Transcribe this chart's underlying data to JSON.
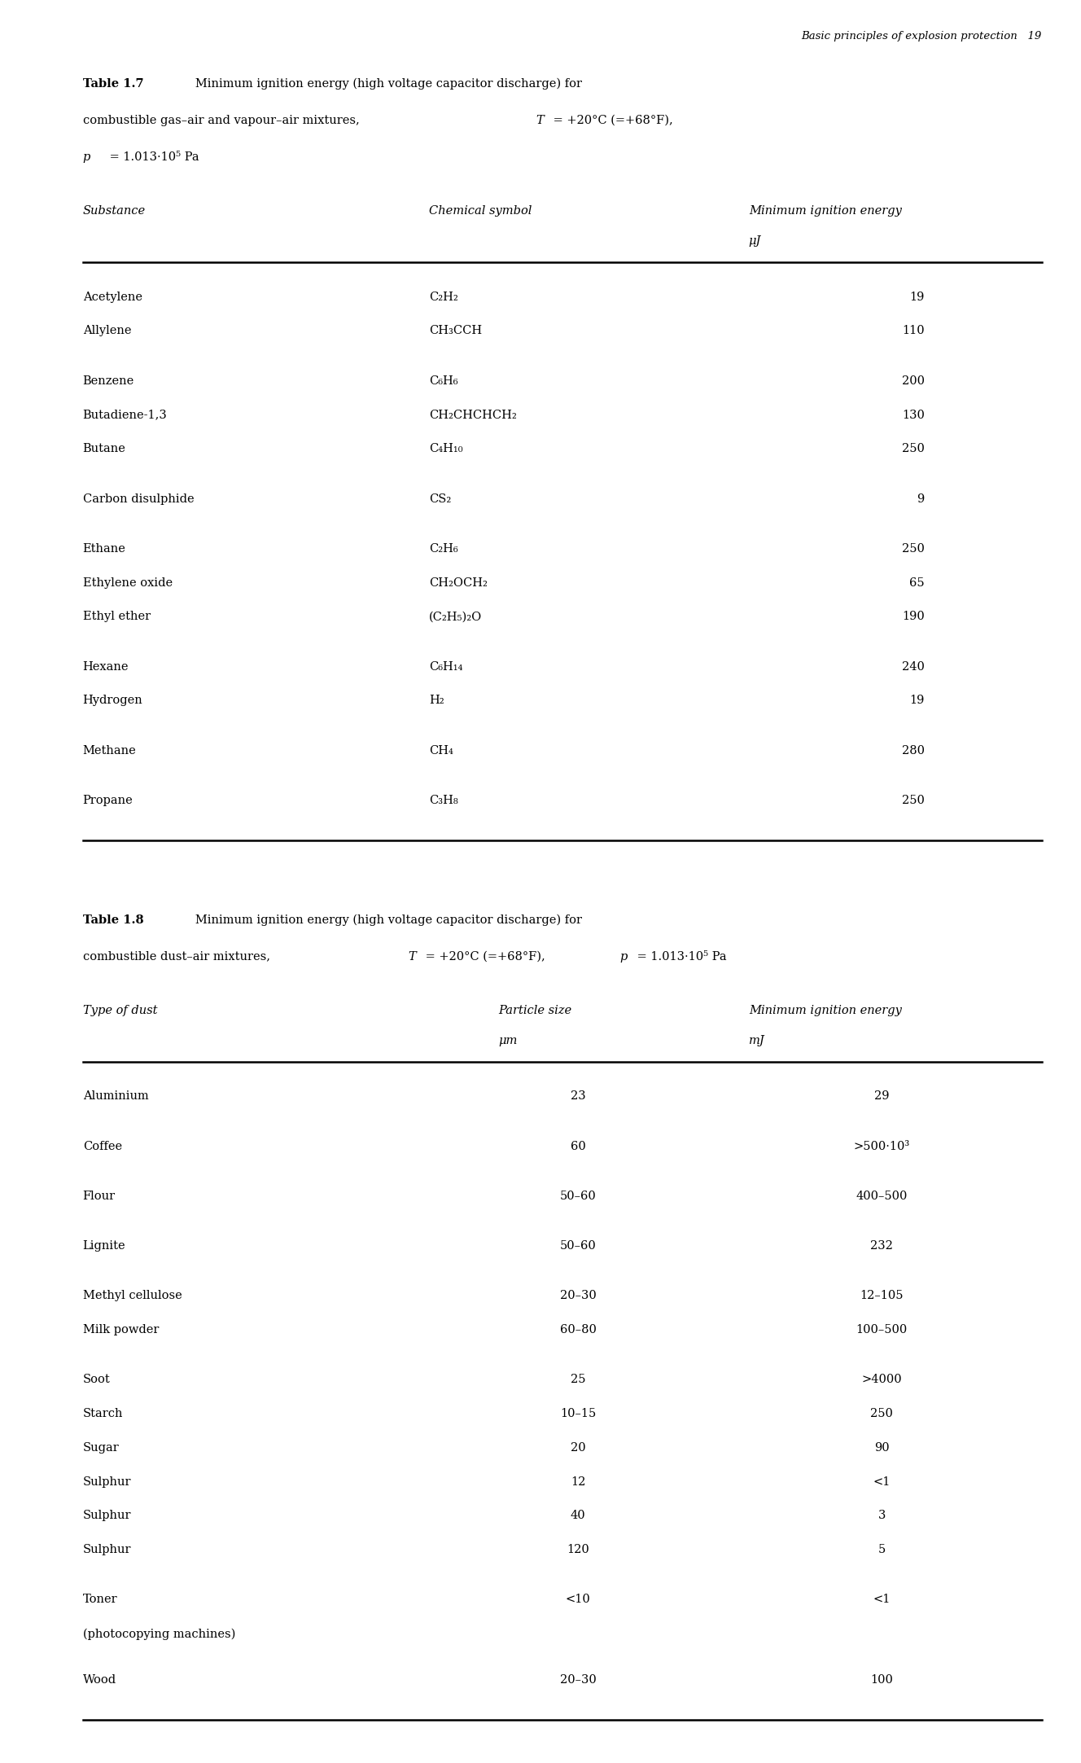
{
  "page_header": "Basic principles of explosion protection   19",
  "table1_title_bold": "Table 1.7",
  "table1_title_line1_rest": "   Minimum ignition energy (high voltage capacitor discharge) for",
  "table1_title_line2": "combustible gas–air and vapour–air mixtures, ",
  "table1_title_line2_T": "T",
  "table1_title_line2_post": " = +20°C (=+68°F),",
  "table1_title_line3_p": "p",
  "table1_title_line3_post": " = 1.013·10⁵ Pa",
  "table1_col1_header": "Substance",
  "table1_col2_header": "Chemical symbol",
  "table1_col3_header": "Minimum ignition energy",
  "table1_col3_unit": "μJ",
  "table1_rows": [
    [
      "Acetylene",
      "C₂H₂",
      "19"
    ],
    [
      "Allylene",
      "CH₃CCH",
      "110"
    ],
    [
      "Benzene",
      "C₆H₆",
      "200"
    ],
    [
      "Butadiene-1,3",
      "CH₂CHCHCH₂",
      "130"
    ],
    [
      "Butane",
      "C₄H₁₀",
      "250"
    ],
    [
      "Carbon disulphide",
      "CS₂",
      "9"
    ],
    [
      "Ethane",
      "C₂H₆",
      "250"
    ],
    [
      "Ethylene oxide",
      "CH₂OCH₂",
      "65"
    ],
    [
      "Ethyl ether",
      "(C₂H₅)₂O",
      "190"
    ],
    [
      "Hexane",
      "C₆H₁₄",
      "240"
    ],
    [
      "Hydrogen",
      "H₂",
      "19"
    ],
    [
      "Methane",
      "CH₄",
      "280"
    ],
    [
      "Propane",
      "C₃H₈",
      "250"
    ]
  ],
  "table1_groups": [
    [
      0,
      1
    ],
    [
      2,
      3,
      4
    ],
    [
      5
    ],
    [
      6,
      7,
      8
    ],
    [
      9,
      10
    ],
    [
      11
    ],
    [
      12
    ]
  ],
  "table2_title_bold": "Table 1.8",
  "table2_title_line1_rest": "   Minimum ignition energy (high voltage capacitor discharge) for",
  "table2_title_line2": "combustible dust–air mixtures, ",
  "table2_title_line2_T": "T",
  "table2_title_line2_mid": " = +20°C (=+68°F), ",
  "table2_title_line2_p": "p",
  "table2_title_line2_post": " = 1.013·10⁵ Pa",
  "table2_col1_header": "Type of dust",
  "table2_col2_header": "Particle size",
  "table2_col2_unit": "μm",
  "table2_col3_header": "Minimum ignition energy",
  "table2_col3_unit": "mJ",
  "table2_rows": [
    [
      "Aluminium",
      "23",
      "29"
    ],
    [
      "Coffee",
      "60",
      ">500·10³"
    ],
    [
      "Flour",
      "50–60",
      "400–500"
    ],
    [
      "Lignite",
      "50–60",
      "232"
    ],
    [
      "Methyl cellulose",
      "20–30",
      "12–105"
    ],
    [
      "Milk powder",
      "60–80",
      "100–500"
    ],
    [
      "Soot",
      "25",
      ">4000"
    ],
    [
      "Starch",
      "10–15",
      "250"
    ],
    [
      "Sugar",
      "20",
      "90"
    ],
    [
      "Sulphur",
      "12",
      "<1"
    ],
    [
      "Sulphur",
      "40",
      "3"
    ],
    [
      "Sulphur",
      "120",
      "5"
    ],
    [
      "Toner\n(photocopying machines)",
      "<10",
      "<1"
    ],
    [
      "Wood",
      "20–30",
      "100"
    ]
  ],
  "table2_groups": [
    [
      0
    ],
    [
      1
    ],
    [
      2
    ],
    [
      3
    ],
    [
      4,
      5
    ],
    [
      6,
      7,
      8,
      9,
      10,
      11
    ],
    [
      12
    ],
    [
      13
    ]
  ]
}
